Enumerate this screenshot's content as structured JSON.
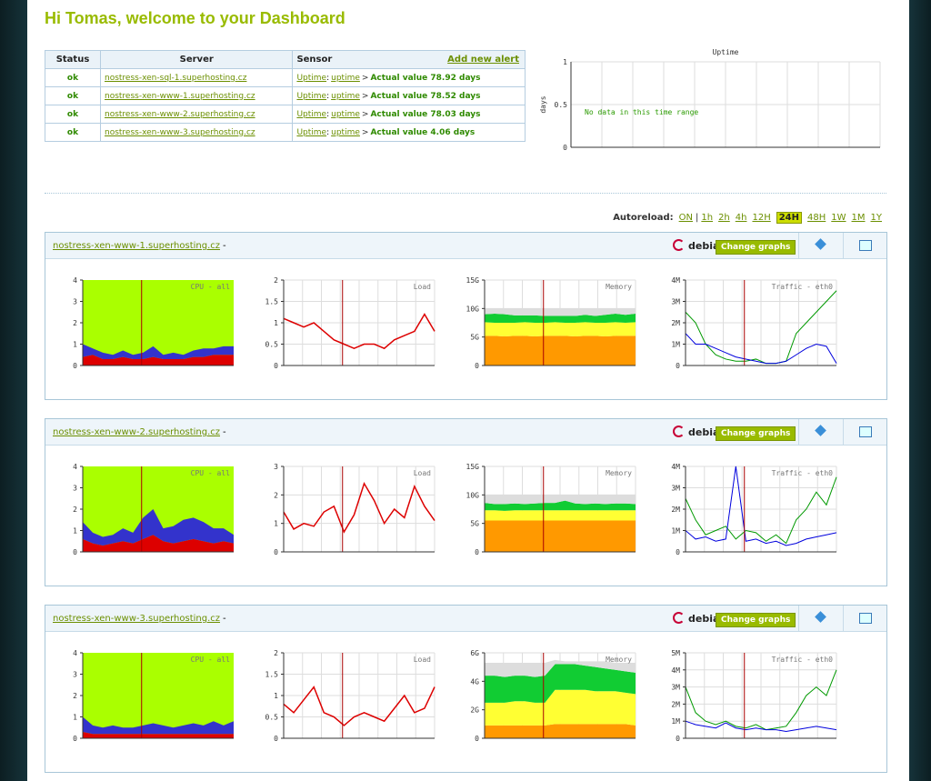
{
  "header": {
    "title": "Hi Tomas, welcome to your Dashboard"
  },
  "alerts": {
    "columns": [
      "Status",
      "Server",
      "Sensor"
    ],
    "add_link": "Add new alert",
    "rows": [
      {
        "status": "ok",
        "server": "nostress-xen-sql-1.superhosting.cz",
        "sensor": "Uptime",
        "sep1": ":",
        "sub": "uptime",
        "sep2": ">",
        "value": "Actual value 78.92 days"
      },
      {
        "status": "ok",
        "server": "nostress-xen-www-1.superhosting.cz",
        "sensor": "Uptime",
        "sep1": ":",
        "sub": "uptime",
        "sep2": ">",
        "value": "Actual value 78.52 days"
      },
      {
        "status": "ok",
        "server": "nostress-xen-www-2.superhosting.cz",
        "sensor": "Uptime",
        "sep1": ":",
        "sub": "uptime",
        "sep2": ">",
        "value": "Actual value 78.03 days"
      },
      {
        "status": "ok",
        "server": "nostress-xen-www-3.superhosting.cz",
        "sensor": "Uptime",
        "sep1": ":",
        "sub": "uptime",
        "sep2": ">",
        "value": "Actual value 4.06 days"
      }
    ]
  },
  "uptime_chart": {
    "type": "line",
    "title": "Uptime",
    "y_label": "days",
    "message": "No data in this time range",
    "ylim": [
      0,
      1
    ],
    "yticks": [
      0,
      0.5,
      1
    ],
    "grid": true
  },
  "autoreload": {
    "label": "Autoreload:",
    "options": [
      "ON",
      "|",
      "1h",
      "2h",
      "4h",
      "12H",
      "24H",
      "48H",
      "1W",
      "1M",
      "1Y"
    ],
    "active": 6
  },
  "panels": [
    {
      "server": "nostress-xen-www-1.superhosting.cz",
      "suffix": "-",
      "os": "debian",
      "button": "Change graphs",
      "charts": [
        {
          "type": "stacked_area",
          "title": "CPU - all",
          "background": "#aaff00",
          "ylim": [
            0,
            4
          ],
          "yticks": [
            0,
            1,
            2,
            3,
            4
          ],
          "series": [
            {
              "color": "#dd0000",
              "values": [
                0.4,
                0.5,
                0.3,
                0.3,
                0.4,
                0.3,
                0.3,
                0.4,
                0.3,
                0.3,
                0.3,
                0.4,
                0.4,
                0.5,
                0.5,
                0.5
              ]
            },
            {
              "color": "#3333cc",
              "values": [
                0.6,
                0.3,
                0.3,
                0.2,
                0.3,
                0.2,
                0.3,
                0.5,
                0.2,
                0.3,
                0.2,
                0.3,
                0.4,
                0.3,
                0.4,
                0.4
              ]
            }
          ]
        },
        {
          "type": "line",
          "title": "Load",
          "ylim": [
            0,
            2
          ],
          "yticks": [
            0,
            0.5,
            1,
            1.5,
            2
          ],
          "series": [
            {
              "color": "#dd0000",
              "values": [
                1.1,
                1.0,
                0.9,
                1.0,
                0.8,
                0.6,
                0.5,
                0.4,
                0.5,
                0.5,
                0.4,
                0.6,
                0.7,
                0.8,
                1.2,
                0.8
              ]
            }
          ]
        },
        {
          "type": "stacked_area",
          "title": "Memory",
          "ylim": [
            0,
            15
          ],
          "yticks": [
            0,
            {
              "value": 5,
              "label": "5G"
            },
            {
              "value": 10,
              "label": "10G"
            },
            {
              "value": 15,
              "label": "15G"
            }
          ],
          "series": [
            {
              "color": "#ff9900",
              "values": [
                5.2,
                5.2,
                5.1,
                5.2,
                5.2,
                5.1,
                5.2,
                5.2,
                5.2,
                5.1,
                5.2,
                5.2,
                5.1,
                5.2,
                5.2,
                5.2
              ]
            },
            {
              "color": "#ffff33",
              "values": [
                2.4,
                2.3,
                2.4,
                2.3,
                2.4,
                2.4,
                2.3,
                2.4,
                2.3,
                2.4,
                2.4,
                2.3,
                2.4,
                2.4,
                2.3,
                2.4
              ]
            },
            {
              "color": "#11cc33",
              "values": [
                1.4,
                1.6,
                1.5,
                1.3,
                1.2,
                1.3,
                1.2,
                1.1,
                1.2,
                1.2,
                1.3,
                1.2,
                1.4,
                1.5,
                1.4,
                1.5
              ]
            },
            {
              "color": "#dddddd",
              "values": [
                1.0,
                0.9,
                1.0,
                1.2,
                1.2,
                1.2,
                1.3,
                1.3,
                1.3,
                1.3,
                1.1,
                1.3,
                1.1,
                0.9,
                1.1,
                0.9
              ]
            }
          ]
        },
        {
          "type": "line",
          "title": "Traffic - eth0",
          "ylim": [
            0,
            4
          ],
          "yticks": [
            0,
            {
              "value": 1,
              "label": "1M"
            },
            {
              "value": 2,
              "label": "2M"
            },
            {
              "value": 3,
              "label": "3M"
            },
            {
              "value": 4,
              "label": "4M"
            }
          ],
          "series": [
            {
              "color": "#009900",
              "values": [
                2.5,
                2.0,
                1.0,
                0.5,
                0.3,
                0.2,
                0.2,
                0.3,
                0.1,
                0.1,
                0.2,
                1.5,
                2.0,
                2.5,
                3.0,
                3.5
              ]
            },
            {
              "color": "#0000dd",
              "values": [
                1.5,
                1.0,
                1.0,
                0.8,
                0.6,
                0.4,
                0.3,
                0.2,
                0.1,
                0.1,
                0.2,
                0.5,
                0.8,
                1.0,
                0.9,
                0.1
              ]
            }
          ]
        }
      ]
    },
    {
      "server": "nostress-xen-www-2.superhosting.cz",
      "suffix": "-",
      "os": "debian",
      "button": "Change graphs",
      "charts": [
        {
          "type": "stacked_area",
          "title": "CPU - all",
          "background": "#aaff00",
          "ylim": [
            0,
            4
          ],
          "yticks": [
            0,
            1,
            2,
            3,
            4
          ],
          "series": [
            {
              "color": "#dd0000",
              "values": [
                0.6,
                0.4,
                0.3,
                0.4,
                0.5,
                0.4,
                0.6,
                0.8,
                0.5,
                0.4,
                0.5,
                0.6,
                0.5,
                0.4,
                0.5,
                0.4
              ]
            },
            {
              "color": "#3333cc",
              "values": [
                0.8,
                0.5,
                0.4,
                0.4,
                0.6,
                0.5,
                1.0,
                1.2,
                0.6,
                0.8,
                1.0,
                1.0,
                0.9,
                0.7,
                0.6,
                0.4
              ]
            }
          ]
        },
        {
          "type": "line",
          "title": "Load",
          "ylim": [
            0,
            3
          ],
          "yticks": [
            0,
            1,
            2,
            3
          ],
          "series": [
            {
              "color": "#dd0000",
              "values": [
                1.4,
                0.8,
                1.0,
                0.9,
                1.4,
                1.6,
                0.7,
                1.3,
                2.4,
                1.8,
                1.0,
                1.5,
                1.2,
                2.3,
                1.6,
                1.1
              ]
            }
          ]
        },
        {
          "type": "stacked_area",
          "title": "Memory",
          "ylim": [
            0,
            15
          ],
          "yticks": [
            0,
            {
              "value": 5,
              "label": "5G"
            },
            {
              "value": 10,
              "label": "10G"
            },
            {
              "value": 15,
              "label": "15G"
            }
          ],
          "series": [
            {
              "color": "#ff9900",
              "values": [
                5.5,
                5.5,
                5.5,
                5.5,
                5.5,
                5.5,
                5.5,
                5.5,
                5.5,
                5.5,
                5.5,
                5.5,
                5.5,
                5.5,
                5.5,
                5.5
              ]
            },
            {
              "color": "#ffff33",
              "values": [
                1.8,
                1.8,
                1.7,
                1.8,
                1.8,
                1.8,
                1.8,
                1.8,
                1.8,
                1.8,
                1.8,
                1.8,
                1.8,
                1.8,
                1.8,
                1.8
              ]
            },
            {
              "color": "#11cc33",
              "values": [
                1.3,
                1.1,
                1.2,
                1.2,
                1.1,
                1.2,
                1.3,
                1.3,
                1.7,
                1.2,
                1.1,
                1.2,
                1.1,
                1.2,
                1.2,
                1.1
              ]
            },
            {
              "color": "#dddddd",
              "values": [
                1.4,
                1.6,
                1.6,
                1.5,
                1.6,
                1.5,
                1.4,
                1.4,
                1.0,
                1.5,
                1.6,
                1.5,
                1.6,
                1.5,
                1.5,
                1.6
              ]
            }
          ]
        },
        {
          "type": "line",
          "title": "Traffic - eth0",
          "ylim": [
            0,
            4
          ],
          "yticks": [
            0,
            {
              "value": 1,
              "label": "1M"
            },
            {
              "value": 2,
              "label": "2M"
            },
            {
              "value": 3,
              "label": "3M"
            },
            {
              "value": 4,
              "label": "4M"
            }
          ],
          "series": [
            {
              "color": "#009900",
              "values": [
                2.5,
                1.5,
                0.8,
                1.0,
                1.2,
                0.6,
                1.0,
                0.9,
                0.5,
                0.8,
                0.4,
                1.5,
                2.0,
                2.8,
                2.2,
                3.5
              ]
            },
            {
              "color": "#0000dd",
              "values": [
                1.0,
                0.6,
                0.7,
                0.5,
                0.6,
                4.0,
                0.5,
                0.6,
                0.4,
                0.5,
                0.3,
                0.4,
                0.6,
                0.7,
                0.8,
                0.9
              ]
            }
          ]
        }
      ]
    },
    {
      "server": "nostress-xen-www-3.superhosting.cz",
      "suffix": "-",
      "os": "debian",
      "button": "Change graphs",
      "charts": [
        {
          "type": "stacked_area",
          "title": "CPU - all",
          "background": "#aaff00",
          "ylim": [
            0,
            4
          ],
          "yticks": [
            0,
            1,
            2,
            3,
            4
          ],
          "series": [
            {
              "color": "#dd0000",
              "values": [
                0.3,
                0.2,
                0.2,
                0.2,
                0.2,
                0.2,
                0.2,
                0.2,
                0.2,
                0.2,
                0.2,
                0.2,
                0.2,
                0.2,
                0.2,
                0.2
              ]
            },
            {
              "color": "#3333cc",
              "values": [
                0.7,
                0.4,
                0.3,
                0.4,
                0.3,
                0.3,
                0.4,
                0.5,
                0.4,
                0.3,
                0.4,
                0.5,
                0.4,
                0.6,
                0.4,
                0.6
              ]
            }
          ]
        },
        {
          "type": "line",
          "title": "Load",
          "ylim": [
            0,
            2
          ],
          "yticks": [
            0,
            0.5,
            1,
            1.5,
            2
          ],
          "series": [
            {
              "color": "#dd0000",
              "values": [
                0.8,
                0.6,
                0.9,
                1.2,
                0.6,
                0.5,
                0.3,
                0.5,
                0.6,
                0.5,
                0.4,
                0.7,
                1.0,
                0.6,
                0.7,
                1.2
              ]
            }
          ]
        },
        {
          "type": "stacked_area",
          "title": "Memory",
          "ylim": [
            0,
            6
          ],
          "yticks": [
            0,
            {
              "value": 2,
              "label": "2G"
            },
            {
              "value": 4,
              "label": "4G"
            },
            {
              "value": 6,
              "label": "6G"
            }
          ],
          "series": [
            {
              "color": "#ff9900",
              "values": [
                0.9,
                0.9,
                0.9,
                0.9,
                0.9,
                0.9,
                0.9,
                1.0,
                1.0,
                1.0,
                1.0,
                1.0,
                1.0,
                1.0,
                1.0,
                0.9
              ]
            },
            {
              "color": "#ffff33",
              "values": [
                1.6,
                1.6,
                1.6,
                1.7,
                1.7,
                1.6,
                1.6,
                2.4,
                2.4,
                2.4,
                2.4,
                2.3,
                2.3,
                2.3,
                2.2,
                2.2
              ]
            },
            {
              "color": "#11cc33",
              "values": [
                1.9,
                1.9,
                1.8,
                1.8,
                1.8,
                1.8,
                1.9,
                1.8,
                1.8,
                1.8,
                1.7,
                1.7,
                1.6,
                1.5,
                1.5,
                1.5
              ]
            },
            {
              "color": "#dddddd",
              "values": [
                0.9,
                0.9,
                1.0,
                0.9,
                0.9,
                1.0,
                0.9,
                0.3,
                0.2,
                0.2,
                0.3,
                0.4,
                0.5,
                0.5,
                0.6,
                0.7
              ]
            }
          ]
        },
        {
          "type": "line",
          "title": "Traffic - eth0",
          "ylim": [
            0,
            5
          ],
          "yticks": [
            0,
            {
              "value": 1,
              "label": "1M"
            },
            {
              "value": 2,
              "label": "2M"
            },
            {
              "value": 3,
              "label": "3M"
            },
            {
              "value": 4,
              "label": "4M"
            },
            {
              "value": 5,
              "label": "5M"
            }
          ],
          "series": [
            {
              "color": "#009900",
              "values": [
                3.0,
                1.5,
                1.0,
                0.8,
                1.0,
                0.7,
                0.6,
                0.8,
                0.5,
                0.6,
                0.7,
                1.5,
                2.5,
                3.0,
                2.5,
                4.0
              ]
            },
            {
              "color": "#0000dd",
              "values": [
                1.0,
                0.8,
                0.7,
                0.6,
                0.9,
                0.6,
                0.5,
                0.6,
                0.5,
                0.5,
                0.4,
                0.5,
                0.6,
                0.7,
                0.6,
                0.5
              ]
            }
          ]
        }
      ]
    }
  ]
}
